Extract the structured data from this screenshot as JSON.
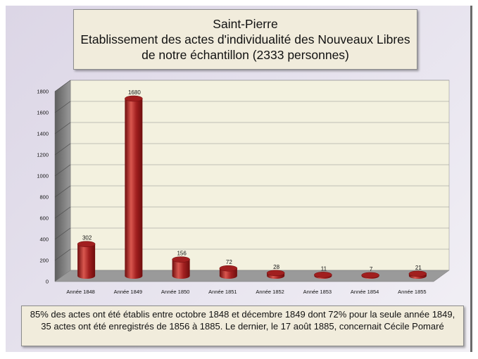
{
  "title": {
    "line1": "Saint-Pierre",
    "line2": "Etablissement des actes d'individualité des Nouveaux Libres",
    "line3": "de notre échantillon (2333 personnes)"
  },
  "note": "85% des actes ont été établis entre octobre 1848 et décembre 1849 dont 72% pour la seule année 1849, 35 actes ont été enregistrés de 1856 à 1885. Le dernier, le 17 août 1885, concernait Cécile Pomaré",
  "colors": {
    "bar": "#a11f1f",
    "bar_dark": "#6e0d0d",
    "bar_light": "#d9574f",
    "plot_back": "#f3f1df",
    "plot_wall": "#7f7f7f",
    "plot_floor": "#9a9a9a"
  },
  "chart_data": {
    "type": "bar",
    "style": "3d-cylinder",
    "categories": [
      "Année 1848",
      "Année 1849",
      "Année 1850",
      "Année 1851",
      "Année 1852",
      "Année 1853",
      "Année 1854",
      "Année 1855"
    ],
    "values": [
      302,
      1680,
      156,
      72,
      28,
      11,
      7,
      21
    ],
    "data_labels": [
      "302",
      "1680",
      "156",
      "72",
      "28",
      "11",
      "7",
      "21"
    ],
    "ylim": [
      0,
      1800
    ],
    "yticks": [
      0,
      200,
      400,
      600,
      800,
      1000,
      1200,
      1400,
      1600,
      1800
    ],
    "grid": true,
    "legend": "none"
  }
}
